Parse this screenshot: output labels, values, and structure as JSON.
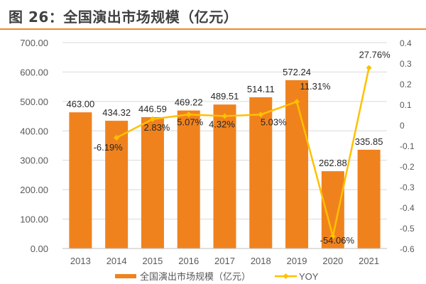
{
  "title": "图 26：全国演出市场规模（亿元）",
  "colors": {
    "bar": "#F0821E",
    "line": "#FFC000",
    "title_rule": "#F08A24"
  },
  "chart_data": {
    "type": "bar+line",
    "categories": [
      "2013",
      "2014",
      "2015",
      "2016",
      "2017",
      "2018",
      "2019",
      "2020",
      "2021"
    ],
    "series": [
      {
        "name": "全国演出市场规模（亿元）",
        "type": "bar",
        "axis": "left",
        "values": [
          463.0,
          434.32,
          446.59,
          469.22,
          489.51,
          514.11,
          572.24,
          262.88,
          335.85
        ],
        "labels": [
          "463.00",
          "434.32",
          "446.59",
          "469.22",
          "489.51",
          "514.11",
          "572.24",
          "262.88",
          "335.85"
        ]
      },
      {
        "name": "YOY",
        "type": "line",
        "axis": "right",
        "values": [
          null,
          -0.0619,
          0.0283,
          0.0507,
          0.0432,
          0.0503,
          0.1131,
          -0.5406,
          0.2776
        ],
        "labels": [
          "",
          "-6.19%",
          "2.83%",
          "5.07%",
          "4.32%",
          "5.03%",
          "11.31%",
          "-54.06%",
          "27.76%"
        ]
      }
    ],
    "ylim_left": [
      0,
      700
    ],
    "yticks_left": [
      "0.00",
      "100.00",
      "200.00",
      "300.00",
      "400.00",
      "500.00",
      "600.00",
      "700.00"
    ],
    "ylim_right": [
      -0.6,
      0.4
    ],
    "yticks_right": [
      "-0.6",
      "-0.5",
      "-0.4",
      "-0.3",
      "-0.2",
      "-0.1",
      "0",
      "0.1",
      "0.2",
      "0.3",
      "0.4"
    ],
    "grid": true,
    "legend": "bottom"
  }
}
